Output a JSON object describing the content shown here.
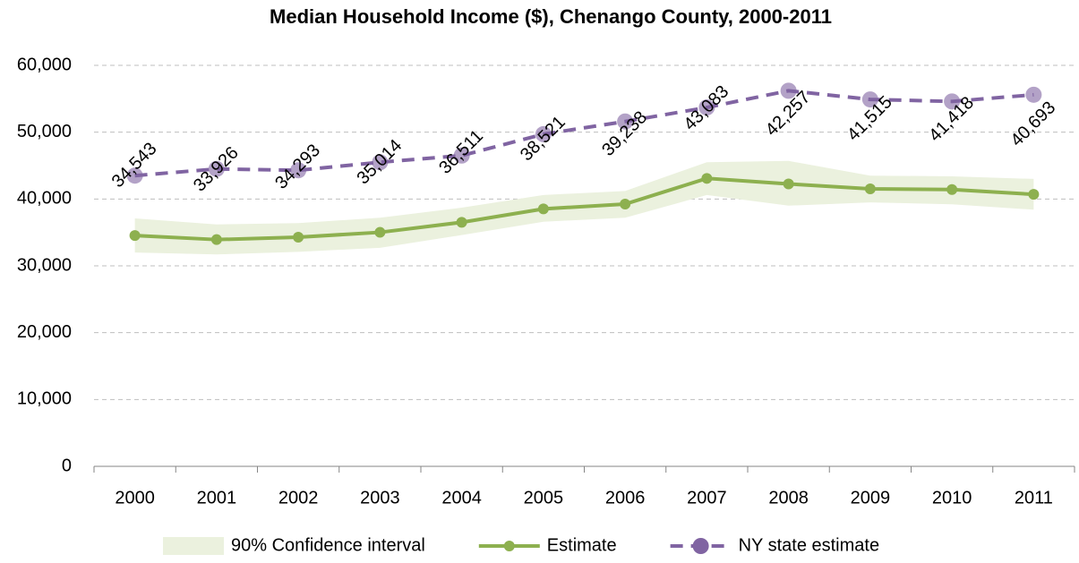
{
  "chart_data": {
    "type": "line",
    "title": "Median Household Income ($), Chenango County, 2000-2011",
    "categories": [
      "2000",
      "2001",
      "2002",
      "2003",
      "2004",
      "2005",
      "2006",
      "2007",
      "2008",
      "2009",
      "2010",
      "2011"
    ],
    "ylim": [
      0,
      60000
    ],
    "yticks": [
      0,
      {
        "value": 10000,
        "label": "10,000"
      },
      {
        "value": 20000,
        "label": "20,000"
      },
      {
        "value": 30000,
        "label": "30,000"
      },
      {
        "value": 40000,
        "label": "40,000"
      },
      {
        "value": 50000,
        "label": "50,000"
      },
      {
        "value": 60000,
        "label": "60,000"
      }
    ],
    "grid": true,
    "legend": "bottom",
    "series": [
      {
        "name": "90% Confidence interval",
        "color": "#ebf1de",
        "kind": "band",
        "upper": [
          37100,
          36200,
          36400,
          37200,
          38700,
          40600,
          41200,
          45500,
          45700,
          43500,
          43400,
          43000
        ],
        "lower": [
          32000,
          31700,
          32100,
          32700,
          34600,
          36600,
          37200,
          40600,
          39000,
          39500,
          39200,
          38400
        ]
      },
      {
        "name": "Estimate",
        "color": "#8db04f",
        "kind": "solid",
        "values": [
          34543,
          33926,
          34293,
          35014,
          36511,
          38521,
          39238,
          43083,
          42257,
          41515,
          41418,
          40693
        ],
        "value_labels": [
          "34,543",
          "33,926",
          "34,293",
          "35,014",
          "36,511",
          "38,521",
          "39,238",
          "43,083",
          "42,257",
          "41,515",
          "41,418",
          "40,693"
        ]
      },
      {
        "name": "NY state estimate",
        "color": "#8064a2",
        "kind": "dashed",
        "values": [
          43500,
          44500,
          44300,
          45500,
          46500,
          49700,
          51600,
          53700,
          56200,
          54900,
          54600,
          55600
        ]
      }
    ]
  }
}
